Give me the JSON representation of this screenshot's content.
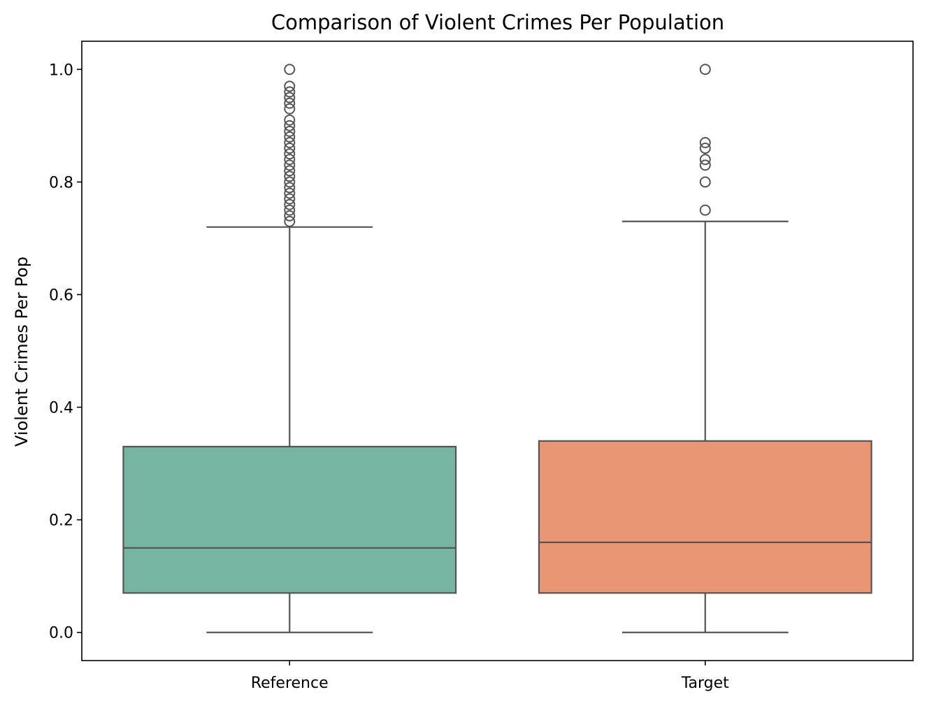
{
  "chart_data": {
    "type": "box",
    "title": "Comparison of Violent Crimes Per Population",
    "xlabel": "",
    "ylabel": "Violent Crimes Per Pop",
    "ylim": [
      -0.05,
      1.05
    ],
    "yticks": [
      0.0,
      0.2,
      0.4,
      0.6,
      0.8,
      1.0
    ],
    "ytick_labels": [
      "0.0",
      "0.2",
      "0.4",
      "0.6",
      "0.8",
      "1.0"
    ],
    "categories": [
      "Reference",
      "Target"
    ],
    "grid": false,
    "colors": {
      "box_edge": "#555555",
      "axes": "#000000"
    },
    "series": [
      {
        "category": "Reference",
        "color": "#75b5a2",
        "whisker_low": 0.0,
        "q1": 0.07,
        "median": 0.15,
        "q3": 0.33,
        "whisker_high": 0.72,
        "outliers": [
          0.73,
          0.74,
          0.75,
          0.76,
          0.77,
          0.78,
          0.79,
          0.8,
          0.81,
          0.82,
          0.83,
          0.84,
          0.85,
          0.86,
          0.87,
          0.88,
          0.89,
          0.9,
          0.91,
          0.93,
          0.94,
          0.95,
          0.96,
          0.97,
          1.0
        ]
      },
      {
        "category": "Target",
        "color": "#e99675",
        "whisker_low": 0.0,
        "q1": 0.07,
        "median": 0.16,
        "q3": 0.34,
        "whisker_high": 0.73,
        "outliers": [
          0.75,
          0.8,
          0.83,
          0.84,
          0.86,
          0.87,
          1.0
        ]
      }
    ]
  }
}
